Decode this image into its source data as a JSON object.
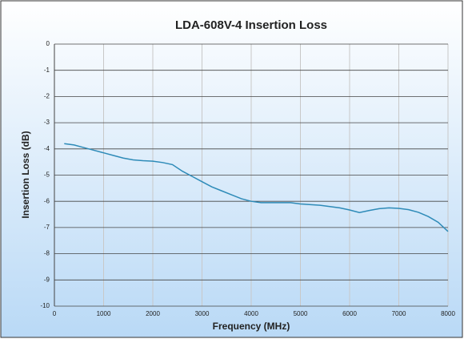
{
  "chart_data": {
    "type": "line",
    "title": "LDA-608V-4 Insertion Loss",
    "xlabel": "Frequency (MHz)",
    "ylabel": "Insertion Loss (dB)",
    "xlim": [
      0,
      8000
    ],
    "xticks": [
      0,
      1000,
      2000,
      3000,
      4000,
      5000,
      6000,
      7000,
      8000
    ],
    "ylim": [
      -10,
      0
    ],
    "yticks": [
      -10,
      -9,
      -8,
      -7,
      -6,
      -5,
      -4,
      -3,
      -2,
      -1,
      0
    ],
    "grid": true,
    "series": [
      {
        "name": "Insertion Loss",
        "color": "#2e8bb8",
        "x": [
          200,
          400,
          600,
          800,
          1000,
          1200,
          1400,
          1600,
          1800,
          2000,
          2200,
          2400,
          2600,
          2800,
          3000,
          3200,
          3400,
          3600,
          3800,
          4000,
          4200,
          4500,
          4800,
          5000,
          5400,
          5800,
          6000,
          6200,
          6400,
          6600,
          6800,
          7000,
          7200,
          7400,
          7600,
          7800,
          8000
        ],
        "values": [
          -3.8,
          -3.85,
          -3.95,
          -4.05,
          -4.15,
          -4.25,
          -4.35,
          -4.42,
          -4.45,
          -4.47,
          -4.52,
          -4.6,
          -4.85,
          -5.05,
          -5.25,
          -5.45,
          -5.6,
          -5.75,
          -5.9,
          -6.0,
          -6.05,
          -6.05,
          -6.05,
          -6.1,
          -6.15,
          -6.25,
          -6.33,
          -6.43,
          -6.35,
          -6.28,
          -6.25,
          -6.27,
          -6.32,
          -6.42,
          -6.58,
          -6.8,
          -7.15
        ]
      }
    ]
  }
}
